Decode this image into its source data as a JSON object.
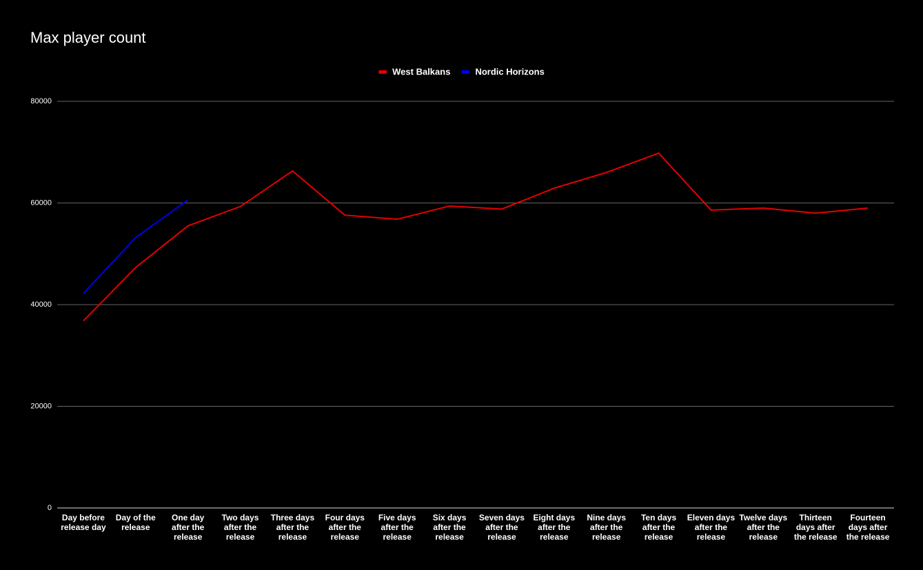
{
  "chart_data": {
    "type": "line",
    "title": "Max player count",
    "categories": [
      "Day before release day",
      "Day of the release",
      "One day after the release",
      "Two days after the release",
      "Three days after the release",
      "Four days after the release",
      "Five days after the release",
      "Six days after the release",
      "Seven days after the release",
      "Eight days after the release",
      "Nine days after the release",
      "Ten days after the release",
      "Eleven days after the release",
      "Twelve days after the release",
      "Thirteen days after the release",
      "Fourteen days after the release"
    ],
    "series": [
      {
        "name": "West Balkans",
        "color": "#e60000",
        "values": [
          36800,
          47300,
          55500,
          59300,
          66300,
          57600,
          56800,
          59400,
          58800,
          62900,
          66000,
          69800,
          58600,
          59000,
          58000,
          59000
        ]
      },
      {
        "name": "Nordic Horizons",
        "color": "#0000ee",
        "values": [
          42200,
          53200,
          60600,
          null,
          null,
          null,
          null,
          null,
          null,
          null,
          null,
          null,
          null,
          null,
          null,
          null
        ]
      }
    ],
    "ylim": [
      0,
      80000
    ],
    "yticks": [
      0,
      20000,
      40000,
      60000,
      80000
    ],
    "grid": true,
    "legend": "top"
  }
}
